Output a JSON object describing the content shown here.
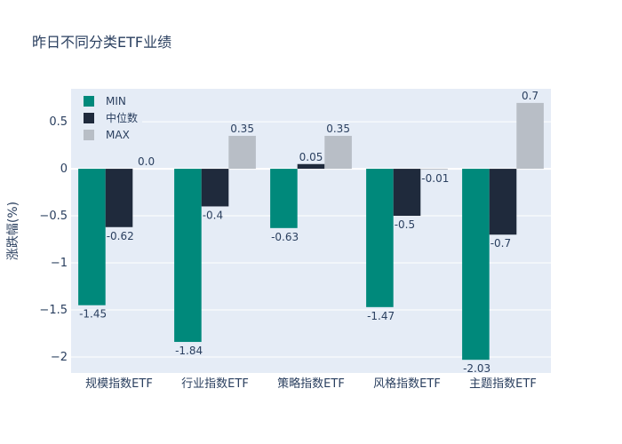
{
  "chart_data": {
    "type": "bar",
    "title": "昨日不同分类ETF业绩",
    "xlabel": "",
    "ylabel": "涨跌幅(%)",
    "ylim": [
      -2.17,
      0.85
    ],
    "yticks": [
      -2,
      -1.5,
      -1,
      -0.5,
      0,
      0.5
    ],
    "ytick_labels": [
      "−2",
      "−1.5",
      "−1",
      "−0.5",
      "0",
      "0.5"
    ],
    "categories": [
      "规模指数ETF",
      "行业指数ETF",
      "策略指数ETF",
      "风格指数ETF",
      "主题指数ETF"
    ],
    "series": [
      {
        "name": "MIN",
        "color": "#00897b",
        "values": [
          -1.45,
          -1.84,
          -0.63,
          -1.47,
          -2.03
        ],
        "labels": [
          "-1.45",
          "-1.84",
          "-0.63",
          "-1.47",
          "-2.03"
        ]
      },
      {
        "name": "中位数",
        "color": "#1f2a3c",
        "values": [
          -0.62,
          -0.4,
          0.05,
          -0.5,
          -0.7
        ],
        "labels": [
          "-0.62",
          "-0.4",
          "0.05",
          "-0.5",
          "-0.7"
        ]
      },
      {
        "name": "MAX",
        "color": "#b8bec6",
        "values": [
          0.0,
          0.35,
          0.35,
          -0.01,
          0.7
        ],
        "labels": [
          "0.0",
          "0.35",
          "0.35",
          "-0.01",
          "0.7"
        ]
      }
    ],
    "legend": "top-left",
    "grid": true
  }
}
